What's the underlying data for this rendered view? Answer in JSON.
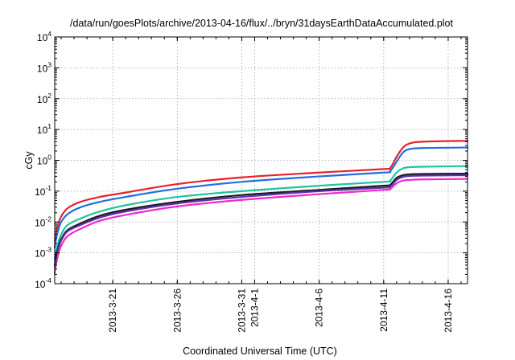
{
  "chart_data": {
    "type": "line",
    "title": "/data/run/goesPlots/archive/2013-04-16/flux/../bryn/31daysEarthDataAccumulated.plot",
    "xlabel": "Coordinated Universal Time (UTC)",
    "ylabel": "cGy",
    "yscale": "log",
    "ylim": [
      0.0001,
      10000
    ],
    "xlim": [
      "2013-03-16T12:00",
      "2013-04-17T12:00"
    ],
    "x_ticks": [
      "2013-3-21",
      "2013-3-26",
      "2013-3-31",
      "2013-4-1",
      "2013-4-6",
      "2013-4-11",
      "2013-4-16"
    ],
    "y_ticks": [
      {
        "base": "10",
        "exp": "-4"
      },
      {
        "base": "10",
        "exp": "-3"
      },
      {
        "base": "10",
        "exp": "-2"
      },
      {
        "base": "10",
        "exp": "-1"
      },
      {
        "base": "10",
        "exp": "0"
      },
      {
        "base": "10",
        "exp": "1"
      },
      {
        "base": "10",
        "exp": "2"
      },
      {
        "base": "10",
        "exp": "3"
      },
      {
        "base": "10",
        "exp": "4"
      }
    ],
    "grid": true,
    "legend": "none",
    "series": [
      {
        "color": "#e8202a",
        "x": [
          "2013-03-16T12:00",
          "2013-03-16T14:00",
          "2013-03-16T18:00",
          "2013-03-17T00:00",
          "2013-03-17T12:00",
          "2013-03-18T12:00",
          "2013-03-20T00:00",
          "2013-03-22T00:00",
          "2013-03-26T00:00",
          "2013-03-31T00:00",
          "2013-04-06T00:00",
          "2013-04-11T00:00",
          "2013-04-11T12:00",
          "2013-04-12T00:00",
          "2013-04-12T12:00",
          "2013-04-13T00:00",
          "2013-04-14T00:00",
          "2013-04-17T12:00"
        ],
        "values": [
          0.0025,
          0.004,
          0.008,
          0.015,
          0.028,
          0.045,
          0.065,
          0.09,
          0.17,
          0.28,
          0.4,
          0.52,
          0.56,
          1.3,
          2.6,
          3.5,
          4.0,
          4.3
        ]
      },
      {
        "color": "#1f6fe0",
        "x": [
          "2013-03-16T12:00",
          "2013-03-16T14:00",
          "2013-03-16T18:00",
          "2013-03-17T00:00",
          "2013-03-17T12:00",
          "2013-03-18T12:00",
          "2013-03-20T00:00",
          "2013-03-22T00:00",
          "2013-03-26T00:00",
          "2013-03-31T00:00",
          "2013-04-06T00:00",
          "2013-04-11T00:00",
          "2013-04-11T12:00",
          "2013-04-12T00:00",
          "2013-04-12T12:00",
          "2013-04-13T00:00",
          "2013-04-14T00:00",
          "2013-04-17T12:00"
        ],
        "values": [
          0.0015,
          0.0025,
          0.005,
          0.01,
          0.018,
          0.03,
          0.045,
          0.065,
          0.12,
          0.2,
          0.3,
          0.4,
          0.44,
          0.9,
          1.8,
          2.3,
          2.5,
          2.6
        ]
      },
      {
        "color": "#1fc4a0",
        "x": [
          "2013-03-16T12:00",
          "2013-03-16T14:00",
          "2013-03-16T18:00",
          "2013-03-17T00:00",
          "2013-03-17T12:00",
          "2013-03-18T12:00",
          "2013-03-20T00:00",
          "2013-03-22T00:00",
          "2013-03-26T00:00",
          "2013-03-31T00:00",
          "2013-04-06T00:00",
          "2013-04-11T00:00",
          "2013-04-11T12:00",
          "2013-04-12T00:00",
          "2013-04-12T12:00",
          "2013-04-13T00:00",
          "2013-04-14T00:00",
          "2013-04-17T12:00"
        ],
        "values": [
          0.0006,
          0.001,
          0.002,
          0.004,
          0.008,
          0.013,
          0.022,
          0.035,
          0.065,
          0.1,
          0.15,
          0.2,
          0.22,
          0.4,
          0.55,
          0.6,
          0.62,
          0.65
        ]
      },
      {
        "color": "#1a1a1a",
        "x": [
          "2013-03-16T12:00",
          "2013-03-16T14:00",
          "2013-03-16T18:00",
          "2013-03-17T00:00",
          "2013-03-17T12:00",
          "2013-03-18T12:00",
          "2013-03-20T00:00",
          "2013-03-22T00:00",
          "2013-03-26T00:00",
          "2013-03-31T00:00",
          "2013-04-06T00:00",
          "2013-04-11T00:00",
          "2013-04-11T12:00",
          "2013-04-12T00:00",
          "2013-04-12T12:00",
          "2013-04-13T00:00",
          "2013-04-14T00:00",
          "2013-04-17T12:00"
        ],
        "values": [
          0.0004,
          0.0007,
          0.0014,
          0.0028,
          0.0055,
          0.009,
          0.016,
          0.025,
          0.045,
          0.075,
          0.11,
          0.15,
          0.16,
          0.27,
          0.33,
          0.35,
          0.36,
          0.37
        ]
      },
      {
        "color": "#5a32a8",
        "x": [
          "2013-03-16T12:00",
          "2013-03-16T14:00",
          "2013-03-16T18:00",
          "2013-03-17T00:00",
          "2013-03-17T12:00",
          "2013-03-18T12:00",
          "2013-03-20T00:00",
          "2013-03-22T00:00",
          "2013-03-26T00:00",
          "2013-03-31T00:00",
          "2013-04-06T00:00",
          "2013-04-11T00:00",
          "2013-04-11T12:00",
          "2013-04-12T00:00",
          "2013-04-12T12:00",
          "2013-04-13T00:00",
          "2013-04-14T00:00",
          "2013-04-17T12:00"
        ],
        "values": [
          0.00035,
          0.0006,
          0.0012,
          0.0025,
          0.005,
          0.008,
          0.014,
          0.022,
          0.04,
          0.065,
          0.1,
          0.13,
          0.14,
          0.23,
          0.29,
          0.31,
          0.32,
          0.33
        ]
      },
      {
        "color": "#ee2ad0",
        "x": [
          "2013-03-16T12:00",
          "2013-03-16T14:00",
          "2013-03-16T18:00",
          "2013-03-17T00:00",
          "2013-03-17T12:00",
          "2013-03-18T12:00",
          "2013-03-20T00:00",
          "2013-03-22T00:00",
          "2013-03-26T00:00",
          "2013-03-31T00:00",
          "2013-04-06T00:00",
          "2013-04-11T00:00",
          "2013-04-11T12:00",
          "2013-04-12T00:00",
          "2013-04-12T12:00",
          "2013-04-13T00:00",
          "2013-04-14T00:00",
          "2013-04-17T12:00"
        ],
        "values": [
          0.00022,
          0.0004,
          0.0008,
          0.0017,
          0.0035,
          0.006,
          0.011,
          0.017,
          0.032,
          0.052,
          0.08,
          0.11,
          0.12,
          0.18,
          0.22,
          0.23,
          0.24,
          0.25
        ]
      }
    ]
  }
}
